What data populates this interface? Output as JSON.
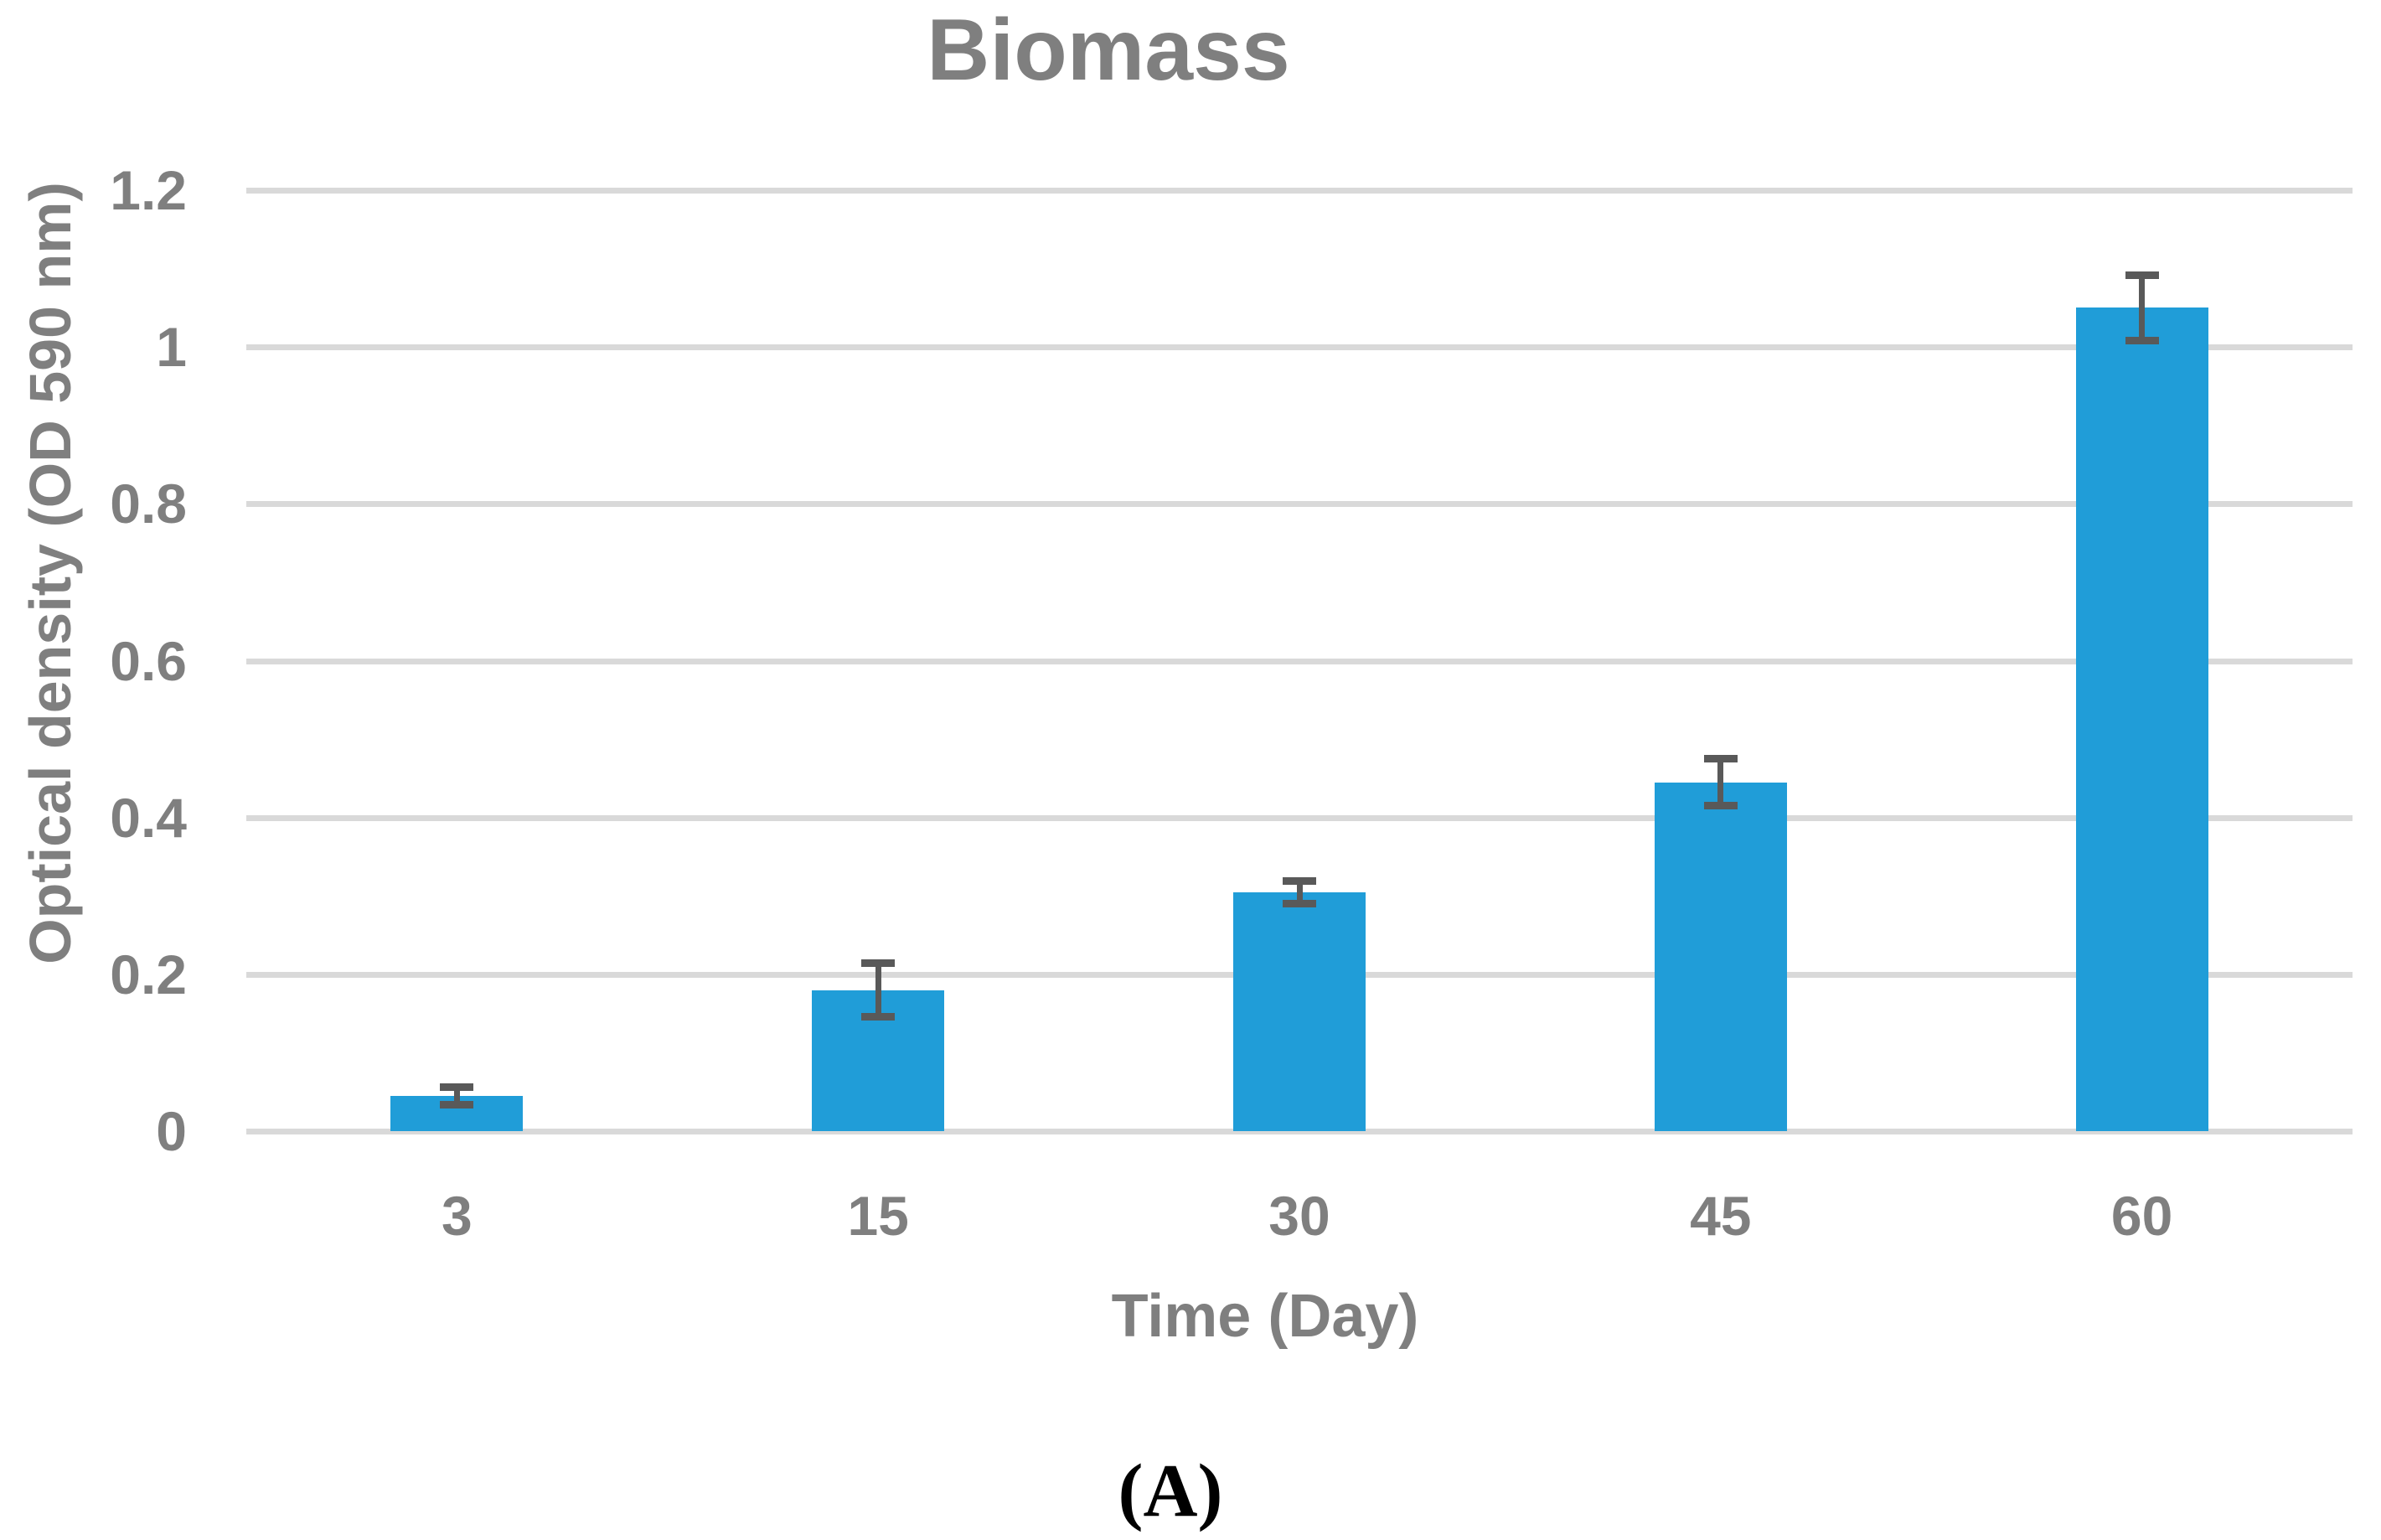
{
  "figure": {
    "caption": "(A)"
  },
  "chart_data": {
    "type": "bar",
    "title": "Biomass",
    "xlabel": "Time (Day)",
    "ylabel": "Optical density (OD 590 nm)",
    "categories": [
      "3",
      "15",
      "30",
      "45",
      "60"
    ],
    "values": [
      0.045,
      0.18,
      0.305,
      0.445,
      1.05
    ],
    "error_bars": [
      0.012,
      0.035,
      0.015,
      0.03,
      0.042
    ],
    "ylim": [
      0,
      1.2
    ],
    "ytick_step": 0.2,
    "yticks": [
      "0",
      "0.2",
      "0.4",
      "0.6",
      "0.8",
      "1",
      "1.2"
    ],
    "grid": "horizontal",
    "legend": "none",
    "colors": {
      "bar": "#209DD8",
      "gridline": "#D9D9D9",
      "text": "#7F7F7F",
      "error_bar": "#595959",
      "caption": "#000000"
    }
  }
}
